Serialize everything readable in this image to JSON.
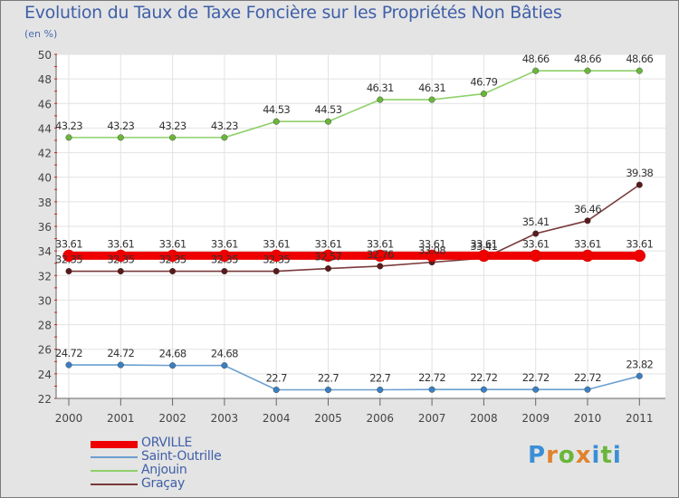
{
  "title": "Evolution du Taux de Taxe Foncière sur les Propriétés Non Bâties",
  "subtitle": "(en %)",
  "brand": {
    "letters": [
      "P",
      "r",
      "o",
      "x",
      "i",
      "t",
      "i"
    ],
    "colors": [
      "#3b8fd6",
      "#e0832e",
      "#6ab63c",
      "#e0832e",
      "#3b8fd6",
      "#6ab63c",
      "#3b8fd6"
    ]
  },
  "legend": [
    {
      "label": "ORVILLE",
      "color": "#ee0000"
    },
    {
      "label": "Saint-Outrille",
      "color": "#6a9fd0"
    },
    {
      "label": "Anjouin",
      "color": "#8fd06a"
    },
    {
      "label": "Graçay",
      "color": "#7a3a3a"
    }
  ],
  "chart_data": {
    "type": "line",
    "title": "Evolution du Taux de Taxe Foncière sur les Propriétés Non Bâties",
    "ylabel": "(en %)",
    "xlabel": "",
    "x": [
      "2000",
      "2001",
      "2002",
      "2003",
      "2004",
      "2005",
      "2006",
      "2007",
      "2008",
      "2009",
      "2010",
      "2011"
    ],
    "ylim": [
      22,
      50
    ],
    "yticks": [
      "22",
      "24",
      "26",
      "28",
      "30",
      "32",
      "34",
      "36",
      "38",
      "40",
      "42",
      "44",
      "46",
      "48",
      "50"
    ],
    "grid": true,
    "series": [
      {
        "name": "ORVILLE",
        "color": "#ee0000",
        "marker": "#ee0000",
        "values": [
          33.61,
          33.61,
          33.61,
          33.61,
          33.61,
          33.61,
          33.61,
          33.61,
          33.61,
          33.61,
          33.61,
          33.61
        ],
        "labels": [
          "33.61",
          "33.61",
          "33.61",
          "33.61",
          "33.61",
          "33.61",
          "33.61",
          "33.61",
          "33.61",
          "33.61",
          "33.61",
          "33.61"
        ]
      },
      {
        "name": "Saint-Outrille",
        "color": "#6a9fd0",
        "marker": "#3b7fc0",
        "values": [
          24.72,
          24.72,
          24.68,
          24.68,
          22.7,
          22.7,
          22.7,
          22.72,
          22.72,
          22.72,
          22.72,
          23.82
        ],
        "labels": [
          "24.72",
          "24.72",
          "24.68",
          "24.68",
          "22.7",
          "22.7",
          "22.7",
          "22.72",
          "22.72",
          "22.72",
          "22.72",
          "23.82"
        ]
      },
      {
        "name": "Anjouin",
        "color": "#8fd06a",
        "marker": "#6ab63c",
        "values": [
          43.23,
          43.23,
          43.23,
          43.23,
          44.53,
          44.53,
          46.31,
          46.31,
          46.79,
          48.66,
          48.66,
          48.66
        ],
        "labels": [
          "43.23",
          "43.23",
          "43.23",
          "43.23",
          "44.53",
          "44.53",
          "46.31",
          "46.31",
          "46.79",
          "48.66",
          "48.66",
          "48.66"
        ]
      },
      {
        "name": "Graçay",
        "color": "#7a3a3a",
        "marker": "#5a1a1a",
        "values": [
          32.35,
          32.35,
          32.35,
          32.35,
          32.35,
          32.57,
          32.76,
          33.08,
          33.41,
          35.41,
          36.46,
          39.38
        ],
        "labels": [
          "32.35",
          "32.35",
          "32.35",
          "32.35",
          "32.35",
          "32.57",
          "32.76",
          "33.08",
          "33.41",
          "35.41",
          "36.46",
          "39.38"
        ]
      }
    ]
  }
}
